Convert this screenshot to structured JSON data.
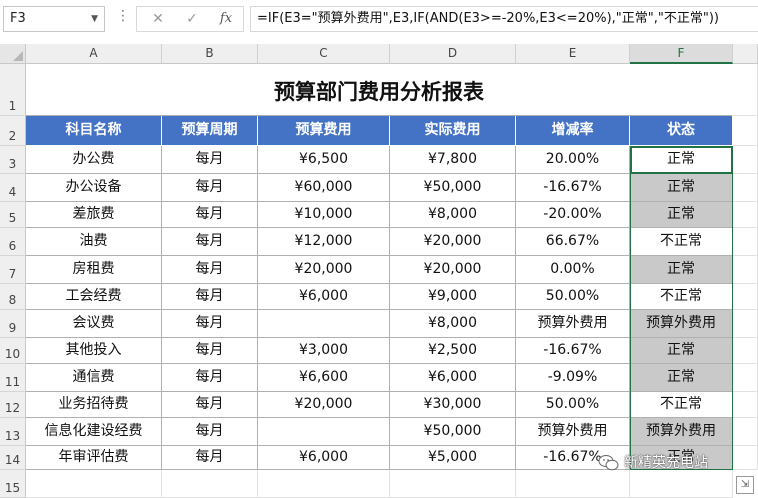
{
  "formula_bar": {
    "name_box": "F3",
    "fx_label": "fx",
    "formula": "=IF(E3=\"预算外费用\",E3,IF(AND(E3>=-20%,E3<=20%),\"正常\",\"不正常\"))"
  },
  "column_headers": [
    "A",
    "B",
    "C",
    "D",
    "E",
    "F"
  ],
  "row_numbers": [
    "1",
    "2",
    "3",
    "4",
    "5",
    "6",
    "7",
    "8",
    "9",
    "10",
    "11",
    "12",
    "13",
    "14",
    "15"
  ],
  "sheet": {
    "title": "预算部门费用分析报表",
    "headers": [
      "科目名称",
      "预算周期",
      "预算费用",
      "实际费用",
      "增减率",
      "状态"
    ],
    "rows": [
      [
        "办公费",
        "每月",
        "¥6,500",
        "¥7,800",
        "20.00%",
        "正常"
      ],
      [
        "办公设备",
        "每月",
        "¥60,000",
        "¥50,000",
        "-16.67%",
        "正常"
      ],
      [
        "差旅费",
        "每月",
        "¥10,000",
        "¥8,000",
        "-20.00%",
        "正常"
      ],
      [
        "油费",
        "每月",
        "¥12,000",
        "¥20,000",
        "66.67%",
        "不正常"
      ],
      [
        "房租费",
        "每月",
        "¥20,000",
        "¥20,000",
        "0.00%",
        "正常"
      ],
      [
        "工会经费",
        "每月",
        "¥6,000",
        "¥9,000",
        "50.00%",
        "不正常"
      ],
      [
        "会议费",
        "每月",
        "",
        "¥8,000",
        "预算外费用",
        "预算外费用"
      ],
      [
        "其他投入",
        "每月",
        "¥3,000",
        "¥2,500",
        "-16.67%",
        "正常"
      ],
      [
        "通信费",
        "每月",
        "¥6,600",
        "¥6,000",
        "-9.09%",
        "正常"
      ],
      [
        "业务招待费",
        "每月",
        "¥20,000",
        "¥30,000",
        "50.00%",
        "不正常"
      ],
      [
        "信息化建设经费",
        "每月",
        "",
        "¥50,000",
        "预算外费用",
        "预算外费用"
      ],
      [
        "年审评估费",
        "每月",
        "¥6,000",
        "¥5,000",
        "-16.67%",
        "正常"
      ]
    ],
    "status_gray": [
      false,
      true,
      true,
      false,
      true,
      false,
      true,
      true,
      true,
      false,
      true,
      true
    ]
  },
  "watermark": "新精英充电站",
  "colors": {
    "header_fill": "#4472c4",
    "status_fill": "#c9c9c9",
    "selection": "#217346"
  }
}
